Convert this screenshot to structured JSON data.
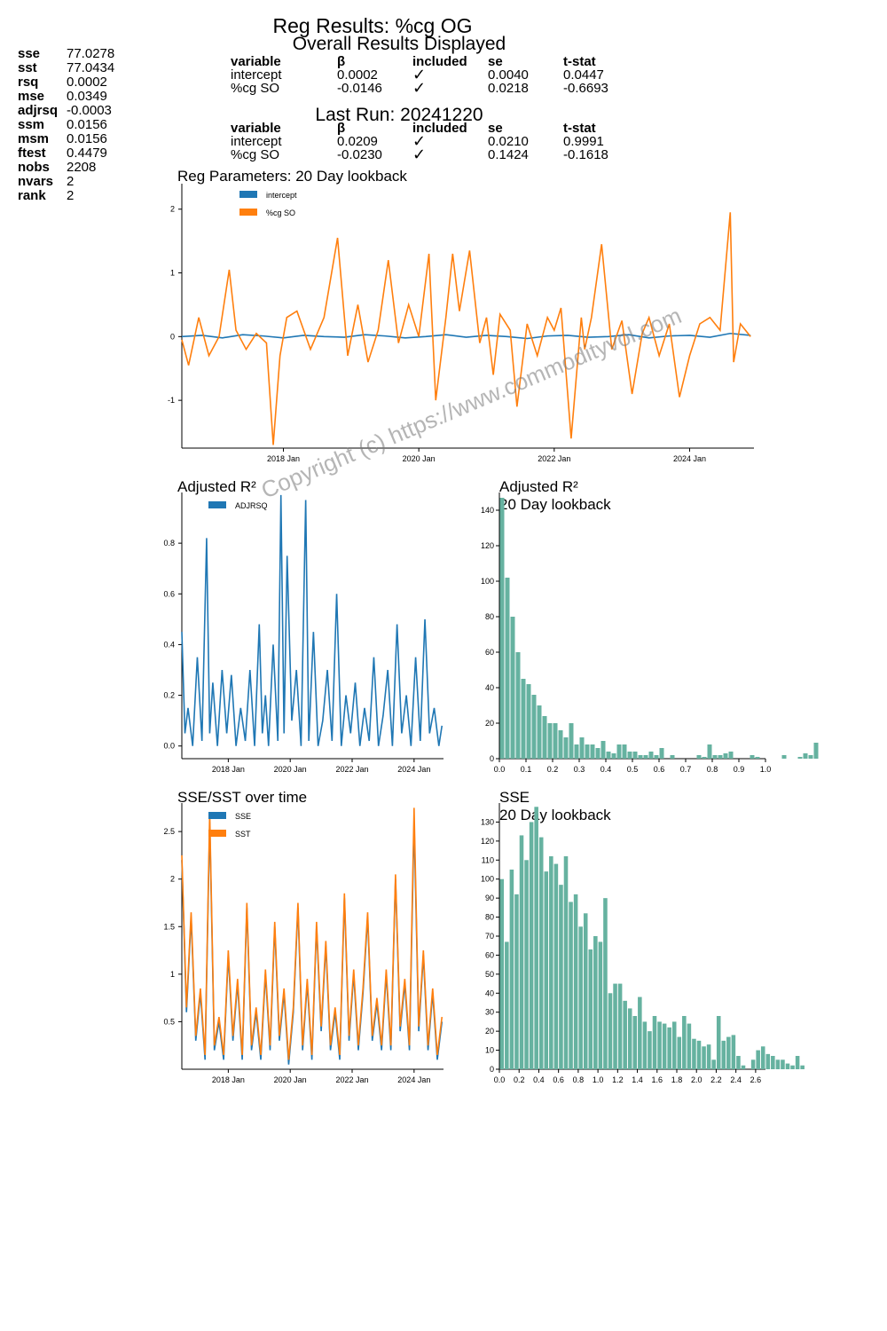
{
  "stats": [
    {
      "key": "sse",
      "value": "77.0278"
    },
    {
      "key": "sst",
      "value": "77.0434"
    },
    {
      "key": "rsq",
      "value": "0.0002"
    },
    {
      "key": "mse",
      "value": "0.0349"
    },
    {
      "key": "adjrsq",
      "value": "-0.0003"
    },
    {
      "key": "ssm",
      "value": "0.0156"
    },
    {
      "key": "msm",
      "value": "0.0156"
    },
    {
      "key": "ftest",
      "value": "0.4479"
    },
    {
      "key": "nobs",
      "value": "2208"
    },
    {
      "key": "nvars",
      "value": "2"
    },
    {
      "key": "rank",
      "value": "2"
    }
  ],
  "header": {
    "title": "Reg Results: %cg OG",
    "overall_title": "Overall Results Displayed",
    "last_run_title": "Last Run: 20241220"
  },
  "table_columns": [
    "variable",
    "β",
    "included",
    "se",
    "t-stat"
  ],
  "overall_rows": [
    {
      "variable": "intercept",
      "beta": "0.0002",
      "included": "✓",
      "se": "0.0040",
      "tstat": "0.0447"
    },
    {
      "variable": "%cg SO",
      "beta": "-0.0146",
      "included": "✓",
      "se": "0.0218",
      "tstat": "-0.6693"
    }
  ],
  "last_run_rows": [
    {
      "variable": "intercept",
      "beta": "0.0209",
      "included": "✓",
      "se": "0.0210",
      "tstat": "0.9991"
    },
    {
      "variable": "%cg SO",
      "beta": "-0.0230",
      "included": "✓",
      "se": "0.1424",
      "tstat": "-0.1618"
    }
  ],
  "watermark": "Copyright (c) https://www.commodityvol.com",
  "colors": {
    "blue": "#1f77b4",
    "orange": "#ff7f0e",
    "teal": "#66b2a0"
  },
  "chart_data": [
    {
      "id": "params",
      "type": "line",
      "title": "Reg Parameters: 20 Day lookback",
      "x_range": [
        "2016-06",
        "2024-12"
      ],
      "ylim": [
        -1.75,
        2.4
      ],
      "yticks": [
        -1,
        0,
        1,
        2
      ],
      "xticks": [
        {
          "label": "2018 Jan",
          "x": 2018.0
        },
        {
          "label": "2020 Jan",
          "x": 2020.0
        },
        {
          "label": "2022 Jan",
          "x": 2022.0
        },
        {
          "label": "2024 Jan",
          "x": 2024.0
        }
      ],
      "legend": [
        "intercept",
        "%cg SO"
      ],
      "series": [
        {
          "name": "intercept",
          "color": "#1f77b4",
          "x": [
            2016.5,
            2016.8,
            2017.1,
            2017.4,
            2017.7,
            2018.0,
            2018.3,
            2018.6,
            2018.9,
            2019.2,
            2019.5,
            2019.8,
            2020.1,
            2020.4,
            2020.7,
            2021.0,
            2021.3,
            2021.6,
            2021.9,
            2022.2,
            2022.5,
            2022.8,
            2023.1,
            2023.4,
            2023.7,
            2024.0,
            2024.3,
            2024.6,
            2024.9
          ],
          "y": [
            0.0,
            0.02,
            -0.02,
            0.03,
            0.01,
            -0.02,
            0.02,
            0.0,
            -0.01,
            0.03,
            0.01,
            -0.02,
            0.0,
            0.03,
            -0.01,
            0.02,
            0.0,
            -0.03,
            0.01,
            0.02,
            -0.01,
            0.0,
            0.03,
            -0.02,
            0.01,
            0.02,
            -0.01,
            0.05,
            0.02
          ]
        },
        {
          "name": "%cg SO",
          "color": "#ff7f0e",
          "x": [
            2016.5,
            2016.6,
            2016.75,
            2016.9,
            2017.05,
            2017.2,
            2017.3,
            2017.45,
            2017.6,
            2017.75,
            2017.85,
            2017.95,
            2018.05,
            2018.2,
            2018.4,
            2018.6,
            2018.8,
            2018.95,
            2019.1,
            2019.25,
            2019.4,
            2019.55,
            2019.7,
            2019.85,
            2020.0,
            2020.15,
            2020.25,
            2020.4,
            2020.5,
            2020.6,
            2020.75,
            2020.9,
            2021.0,
            2021.1,
            2021.2,
            2021.35,
            2021.45,
            2021.6,
            2021.75,
            2021.9,
            2022.0,
            2022.1,
            2022.25,
            2022.4,
            2022.45,
            2022.55,
            2022.7,
            2022.85,
            2023.0,
            2023.15,
            2023.3,
            2023.4,
            2023.55,
            2023.7,
            2023.85,
            2024.0,
            2024.15,
            2024.3,
            2024.45,
            2024.6,
            2024.65,
            2024.75,
            2024.9
          ],
          "y": [
            -0.05,
            -0.45,
            0.3,
            -0.3,
            0.0,
            1.05,
            0.1,
            -0.2,
            0.05,
            -0.1,
            -1.7,
            -0.3,
            0.3,
            0.4,
            -0.2,
            0.3,
            1.55,
            -0.3,
            0.5,
            -0.4,
            0.1,
            1.2,
            -0.1,
            0.5,
            0.0,
            1.3,
            -1.0,
            0.3,
            1.3,
            0.4,
            1.35,
            -0.1,
            0.3,
            -0.6,
            0.35,
            0.1,
            -1.1,
            0.2,
            -0.3,
            0.3,
            0.1,
            0.45,
            -1.6,
            0.3,
            -0.2,
            0.3,
            1.45,
            -0.2,
            0.25,
            -0.9,
            0.05,
            0.3,
            -0.3,
            0.2,
            -0.95,
            -0.3,
            0.2,
            0.3,
            0.1,
            1.95,
            -0.4,
            0.2,
            0.0
          ]
        }
      ]
    },
    {
      "id": "adjrsq",
      "type": "line",
      "title": "Adjusted R²",
      "ylim": [
        -0.05,
        1.0
      ],
      "yticks": [
        0.0,
        0.2,
        0.4,
        0.6,
        0.8
      ],
      "xticks": [
        {
          "label": "2018 Jan",
          "x": 2018.0
        },
        {
          "label": "2020 Jan",
          "x": 2020.0
        },
        {
          "label": "2022 Jan",
          "x": 2022.0
        },
        {
          "label": "2024 Jan",
          "x": 2024.0
        }
      ],
      "legend": [
        "ADJRSQ"
      ],
      "series": [
        {
          "name": "ADJRSQ",
          "color": "#1f77b4",
          "x": [
            2016.5,
            2016.6,
            2016.7,
            2016.85,
            2017.0,
            2017.15,
            2017.3,
            2017.4,
            2017.5,
            2017.65,
            2017.8,
            2017.95,
            2018.1,
            2018.25,
            2018.4,
            2018.55,
            2018.7,
            2018.85,
            2019.0,
            2019.1,
            2019.2,
            2019.3,
            2019.45,
            2019.6,
            2019.7,
            2019.8,
            2019.9,
            2020.05,
            2020.2,
            2020.35,
            2020.5,
            2020.6,
            2020.75,
            2020.9,
            2021.05,
            2021.2,
            2021.35,
            2021.5,
            2021.65,
            2021.8,
            2021.95,
            2022.1,
            2022.25,
            2022.4,
            2022.55,
            2022.7,
            2022.85,
            2023.0,
            2023.15,
            2023.3,
            2023.45,
            2023.6,
            2023.75,
            2023.9,
            2024.05,
            2024.2,
            2024.35,
            2024.5,
            2024.65,
            2024.8,
            2024.9
          ],
          "y": [
            0.45,
            0.05,
            0.15,
            0.0,
            0.35,
            0.02,
            0.82,
            0.05,
            0.25,
            0.0,
            0.3,
            0.05,
            0.28,
            0.0,
            0.15,
            0.02,
            0.3,
            0.0,
            0.48,
            0.05,
            0.2,
            0.0,
            0.4,
            0.02,
            0.99,
            0.05,
            0.75,
            0.1,
            0.3,
            0.0,
            0.97,
            0.02,
            0.45,
            0.0,
            0.1,
            0.3,
            0.02,
            0.6,
            0.0,
            0.2,
            0.05,
            0.25,
            0.0,
            0.15,
            0.02,
            0.35,
            0.0,
            0.12,
            0.3,
            0.0,
            0.48,
            0.05,
            0.2,
            0.0,
            0.35,
            0.02,
            0.5,
            0.05,
            0.15,
            0.0,
            0.08
          ]
        }
      ]
    },
    {
      "id": "adjrsq_hist",
      "type": "bar",
      "title": "Adjusted R²",
      "subtitle": "20 Day lookback",
      "bin_start": 0.0,
      "bin_width": 0.02,
      "values": [
        147,
        102,
        80,
        60,
        45,
        42,
        36,
        30,
        24,
        20,
        20,
        16,
        12,
        20,
        8,
        12,
        8,
        8,
        6,
        10,
        4,
        3,
        8,
        8,
        4,
        4,
        2,
        2,
        4,
        2,
        6,
        0,
        2,
        0,
        0,
        0,
        0,
        2,
        1,
        8,
        2,
        2,
        3,
        4,
        0,
        0,
        0,
        2,
        1,
        0,
        0,
        0,
        0,
        2,
        0,
        0,
        1,
        3,
        2,
        9
      ],
      "ylim": [
        0,
        150
      ],
      "yticks": [
        0,
        20,
        40,
        60,
        80,
        100,
        120,
        140
      ],
      "xticks": [
        0.0,
        0.1,
        0.2,
        0.3,
        0.4,
        0.5,
        0.6,
        0.7,
        0.8,
        0.9,
        1.0
      ],
      "xlim": [
        0,
        1.0
      ]
    },
    {
      "id": "sse_sst",
      "type": "line",
      "title": "SSE/SST over time",
      "ylim": [
        0,
        2.8
      ],
      "yticks": [
        0.5,
        1.0,
        1.5,
        2.0,
        2.5
      ],
      "xticks": [
        {
          "label": "2018 Jan",
          "x": 2018.0
        },
        {
          "label": "2020 Jan",
          "x": 2020.0
        },
        {
          "label": "2022 Jan",
          "x": 2022.0
        },
        {
          "label": "2024 Jan",
          "x": 2024.0
        }
      ],
      "legend": [
        "SSE",
        "SST"
      ],
      "series": [
        {
          "name": "SSE",
          "color": "#1f77b4",
          "x": [
            2016.5,
            2016.65,
            2016.8,
            2016.95,
            2017.1,
            2017.25,
            2017.4,
            2017.55,
            2017.7,
            2017.85,
            2018.0,
            2018.15,
            2018.3,
            2018.45,
            2018.6,
            2018.75,
            2018.9,
            2019.05,
            2019.2,
            2019.35,
            2019.5,
            2019.65,
            2019.8,
            2019.95,
            2020.1,
            2020.25,
            2020.4,
            2020.55,
            2020.7,
            2020.85,
            2021.0,
            2021.15,
            2021.3,
            2021.45,
            2021.6,
            2021.75,
            2021.9,
            2022.05,
            2022.2,
            2022.35,
            2022.5,
            2022.65,
            2022.8,
            2022.95,
            2023.1,
            2023.25,
            2023.4,
            2023.55,
            2023.7,
            2023.85,
            2024.0,
            2024.15,
            2024.3,
            2024.45,
            2024.6,
            2024.75,
            2024.9
          ],
          "y": [
            2.2,
            0.6,
            1.6,
            0.3,
            0.8,
            0.1,
            2.6,
            0.2,
            0.5,
            0.1,
            1.2,
            0.3,
            0.9,
            0.1,
            1.7,
            0.2,
            0.6,
            0.1,
            1.0,
            0.2,
            1.5,
            0.3,
            0.8,
            0.05,
            0.6,
            1.7,
            0.2,
            0.9,
            0.1,
            1.5,
            0.4,
            1.3,
            0.2,
            0.6,
            0.1,
            1.8,
            0.3,
            1.0,
            0.2,
            0.8,
            1.6,
            0.3,
            0.7,
            0.2,
            1.0,
            0.2,
            2.0,
            0.4,
            0.9,
            0.2,
            2.6,
            0.4,
            1.2,
            0.2,
            0.8,
            0.1,
            0.5
          ]
        },
        {
          "name": "SST",
          "color": "#ff7f0e",
          "x": [
            2016.5,
            2016.65,
            2016.8,
            2016.95,
            2017.1,
            2017.25,
            2017.4,
            2017.55,
            2017.7,
            2017.85,
            2018.0,
            2018.15,
            2018.3,
            2018.45,
            2018.6,
            2018.75,
            2018.9,
            2019.05,
            2019.2,
            2019.35,
            2019.5,
            2019.65,
            2019.8,
            2019.95,
            2020.1,
            2020.25,
            2020.4,
            2020.55,
            2020.7,
            2020.85,
            2021.0,
            2021.15,
            2021.3,
            2021.45,
            2021.6,
            2021.75,
            2021.9,
            2022.05,
            2022.2,
            2022.35,
            2022.5,
            2022.65,
            2022.8,
            2022.95,
            2023.1,
            2023.25,
            2023.4,
            2023.55,
            2023.7,
            2023.85,
            2024.0,
            2024.15,
            2024.3,
            2024.45,
            2024.6,
            2024.75,
            2024.9
          ],
          "y": [
            2.25,
            0.65,
            1.65,
            0.35,
            0.85,
            0.15,
            2.7,
            0.25,
            0.55,
            0.15,
            1.25,
            0.35,
            0.95,
            0.15,
            1.75,
            0.25,
            0.65,
            0.15,
            1.05,
            0.25,
            1.55,
            0.35,
            0.85,
            0.1,
            0.65,
            1.75,
            0.25,
            0.95,
            0.15,
            1.55,
            0.45,
            1.35,
            0.25,
            0.65,
            0.15,
            1.85,
            0.35,
            1.05,
            0.25,
            0.85,
            1.65,
            0.35,
            0.75,
            0.25,
            1.05,
            0.25,
            2.05,
            0.45,
            0.95,
            0.25,
            2.75,
            0.45,
            1.25,
            0.25,
            0.85,
            0.15,
            0.55
          ]
        }
      ]
    },
    {
      "id": "sse_hist",
      "type": "bar",
      "title": "SSE",
      "subtitle": "20 Day lookback",
      "bin_start": 0.0,
      "bin_width": 0.05,
      "values": [
        100,
        67,
        105,
        92,
        123,
        110,
        130,
        138,
        122,
        104,
        112,
        108,
        97,
        112,
        88,
        92,
        75,
        82,
        63,
        70,
        67,
        90,
        40,
        45,
        45,
        36,
        32,
        28,
        38,
        25,
        20,
        28,
        25,
        24,
        22,
        25,
        17,
        28,
        24,
        16,
        15,
        12,
        13,
        5,
        28,
        15,
        17,
        18,
        7,
        2,
        0,
        5,
        10,
        12,
        8,
        7,
        5,
        5,
        3,
        2,
        7,
        2
      ],
      "ylim": [
        0,
        140
      ],
      "yticks": [
        0,
        10,
        20,
        30,
        40,
        50,
        60,
        70,
        80,
        90,
        100,
        110,
        120,
        130
      ],
      "xticks": [
        0.0,
        0.2,
        0.4,
        0.6,
        0.8,
        1.0,
        1.2,
        1.4,
        1.6,
        1.8,
        2.0,
        2.2,
        2.4,
        2.6
      ],
      "xlim": [
        0,
        2.7
      ]
    }
  ]
}
